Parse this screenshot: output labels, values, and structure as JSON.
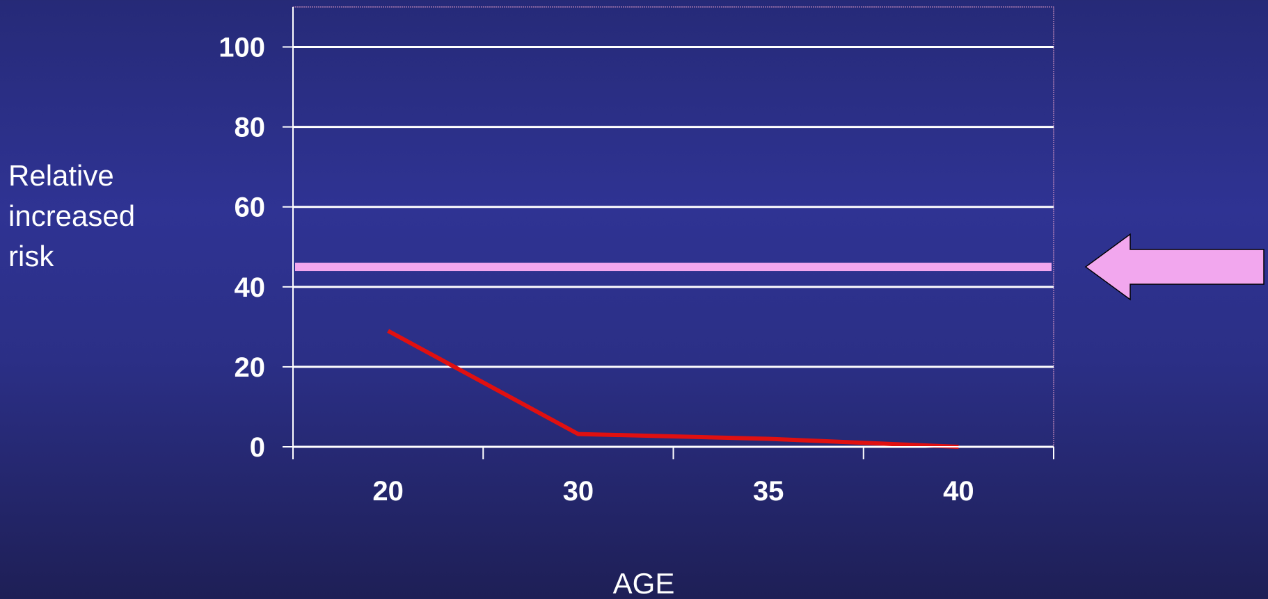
{
  "chart_data": {
    "type": "line",
    "title": "",
    "xlabel": "AGE",
    "ylabel": "Relative\nincreased\nrisk",
    "categories": [
      "20",
      "30",
      "35",
      "40"
    ],
    "ylim": [
      0,
      110
    ],
    "yticks": [
      0,
      20,
      40,
      60,
      80,
      100
    ],
    "grid": true,
    "series": [
      {
        "values": [
          29,
          3.2,
          2,
          0
        ],
        "color": "#e01010"
      }
    ],
    "reference_line": {
      "value": 45,
      "color": "#f2a7ee"
    },
    "annotation": {
      "shape": "arrow-left",
      "color": "#f2a7ee"
    }
  }
}
